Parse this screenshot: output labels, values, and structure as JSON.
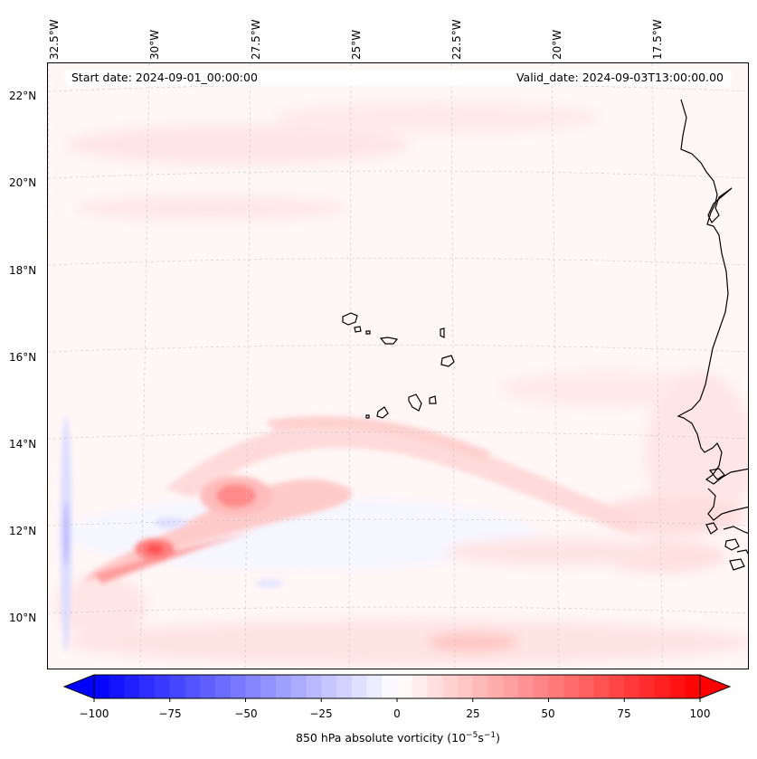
{
  "map": {
    "start_date": "Start date: 2024-09-01_00:00:00",
    "valid_date": "Valid_date: 2024-09-03T13:00:00.00",
    "longitude_labels": [
      "32.5°W",
      "30°W",
      "27.5°W",
      "25°W",
      "22.5°W",
      "20°W",
      "17.5°W"
    ],
    "latitude_labels": [
      "22°N",
      "20°N",
      "18°N",
      "16°N",
      "14°N",
      "12°N",
      "10°N"
    ],
    "field": "850 hPa absolute vorticity",
    "features": [
      "Cabo Verde islands",
      "West African coastline"
    ]
  },
  "colorbar": {
    "label_main": "850 hPa absolute vorticity (10",
    "label_exp1": "−5",
    "label_mid": "s",
    "label_exp2": "−1",
    "label_end": ")",
    "ticks": [
      "−100",
      "−75",
      "−50",
      "−25",
      "0",
      "25",
      "50",
      "75",
      "100"
    ],
    "tick_values": [
      -100,
      -75,
      -50,
      -25,
      0,
      25,
      50,
      75,
      100
    ],
    "range": [
      -100,
      100
    ],
    "colormap": "bwr",
    "extend": "both",
    "low_color": "#0000ff",
    "mid_color": "#ffffff",
    "high_color": "#ff0000"
  }
}
